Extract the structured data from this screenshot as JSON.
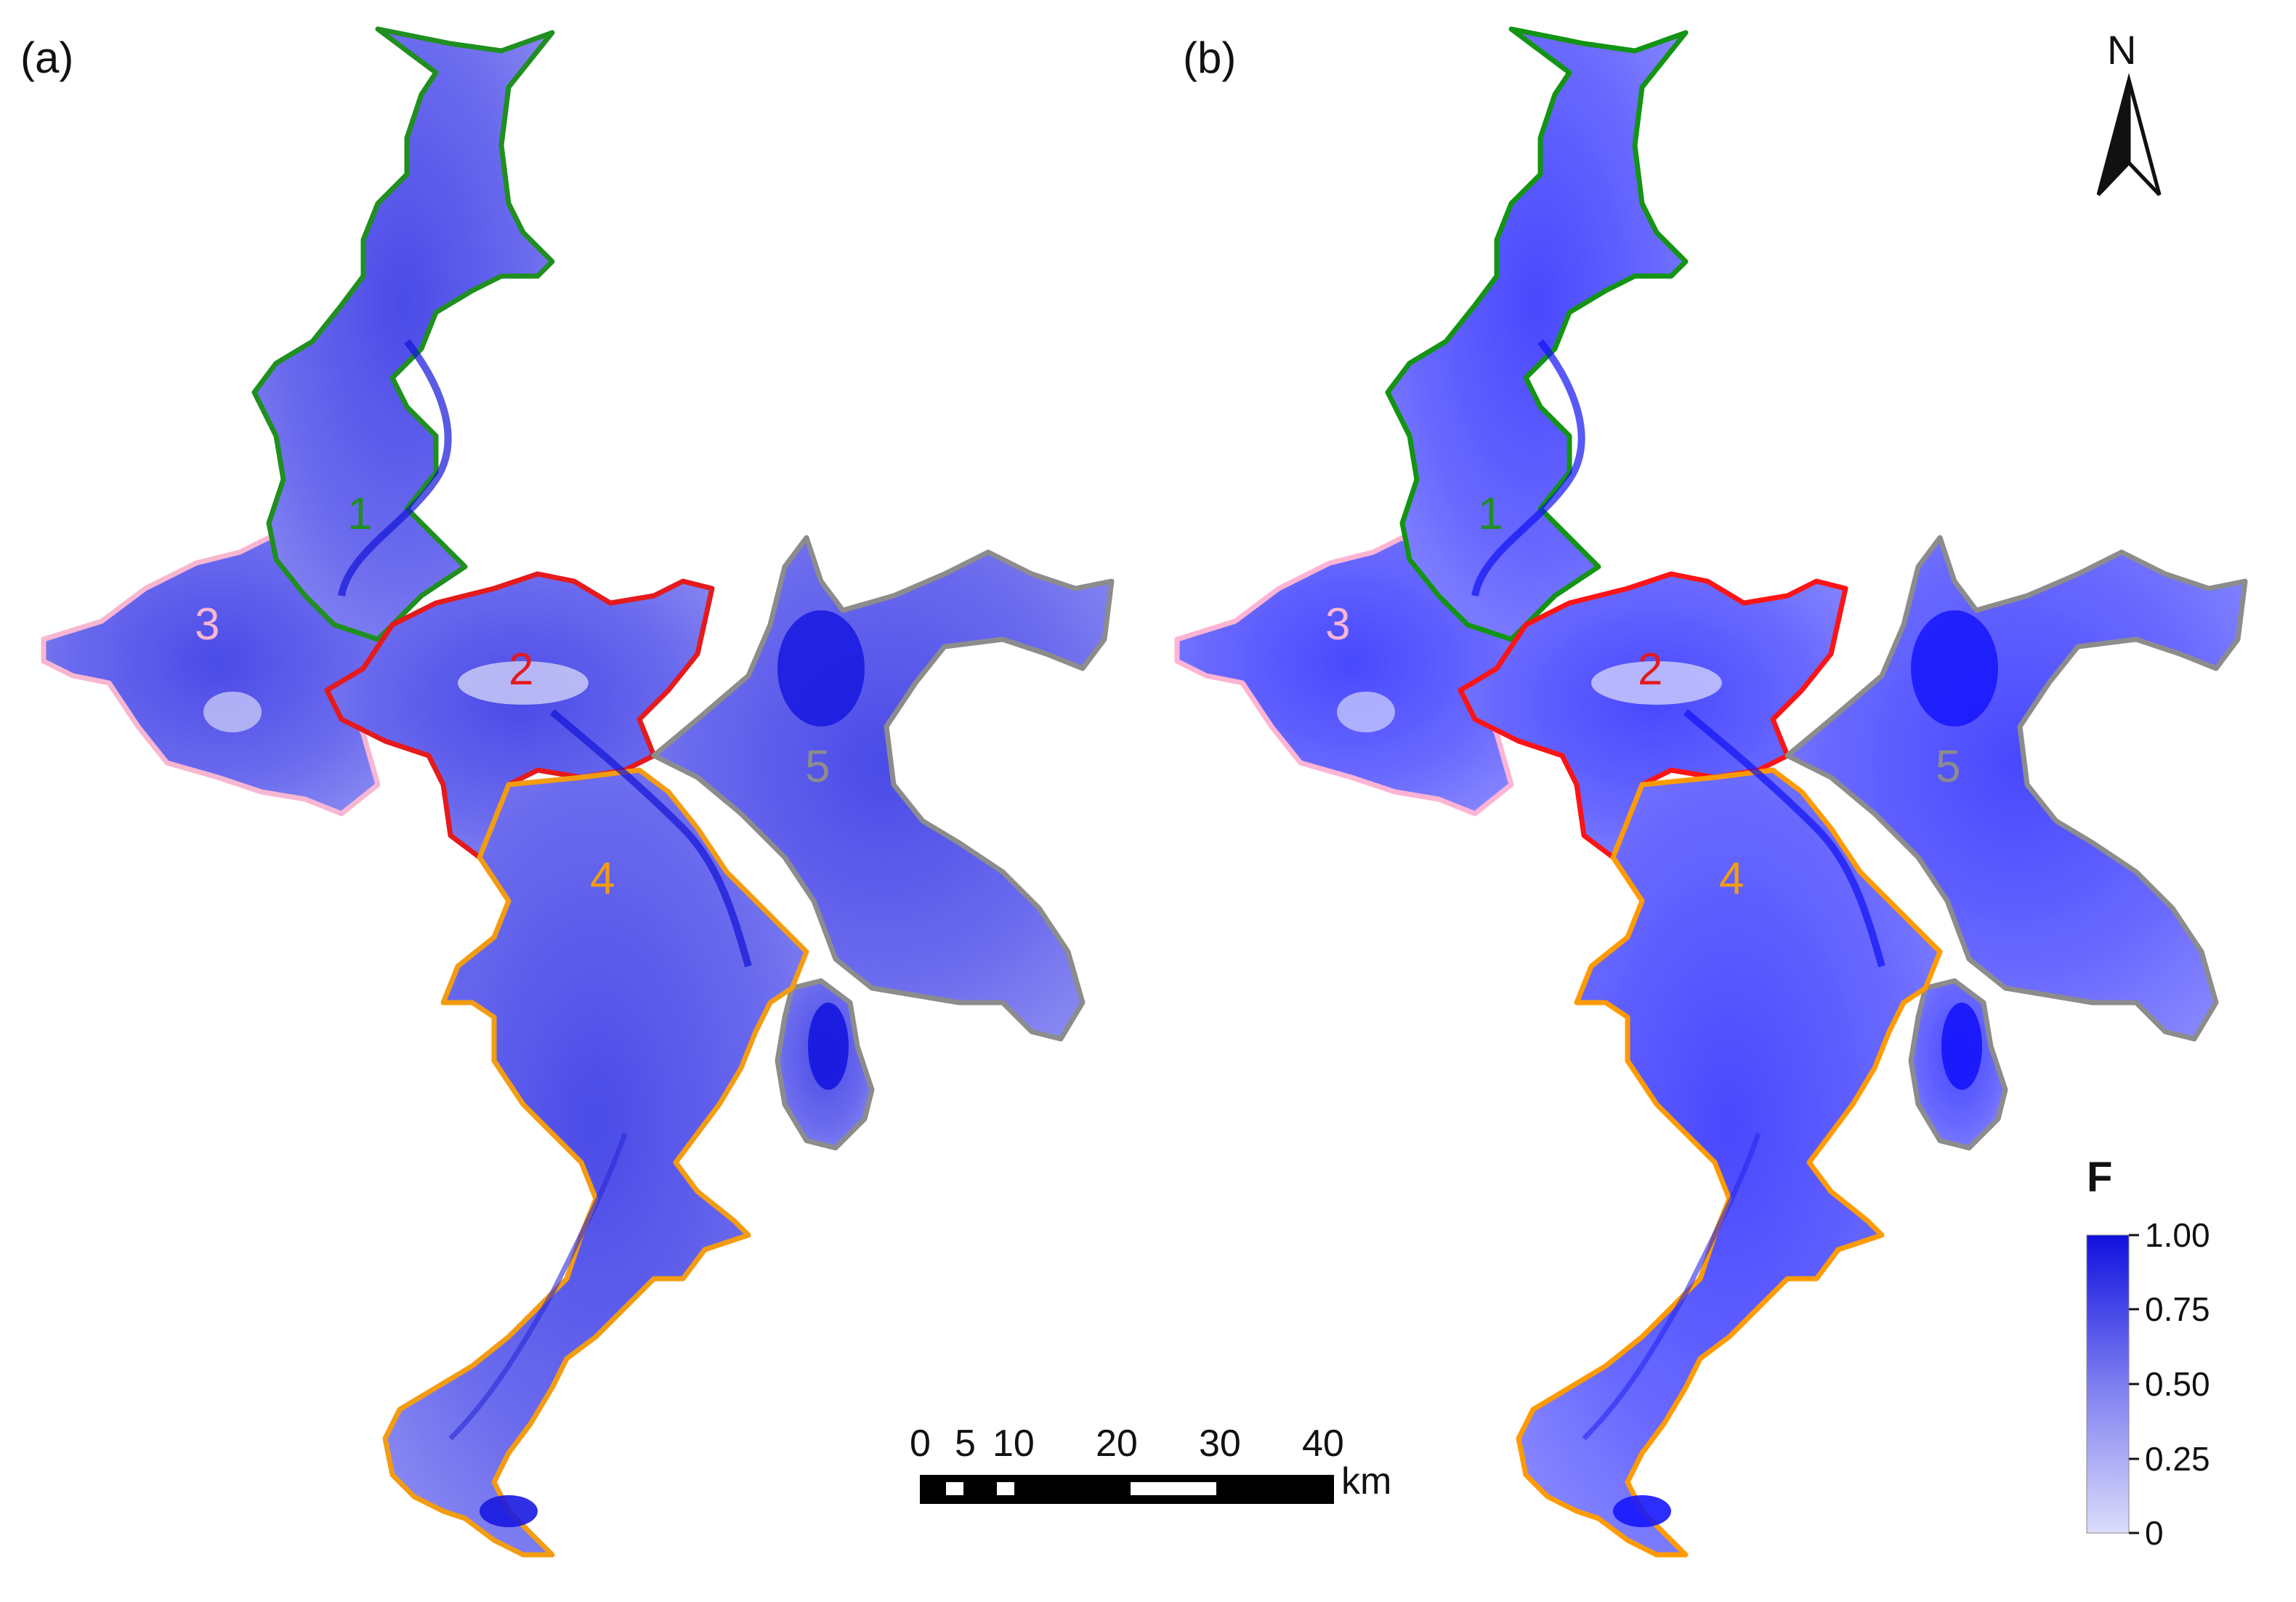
{
  "panels": [
    {
      "label": "(a)"
    },
    {
      "label": "(b)"
    }
  ],
  "zones": [
    {
      "id": "1",
      "color": "#1f8f1f"
    },
    {
      "id": "2",
      "color": "#e41a1c"
    },
    {
      "id": "3",
      "color": "#f7b6d2"
    },
    {
      "id": "4",
      "color": "#f39c12"
    },
    {
      "id": "5",
      "color": "#8c8c8c"
    }
  ],
  "north_arrow": {
    "label": "N"
  },
  "scale_bar": {
    "ticks": [
      "0",
      "5",
      "10",
      "20",
      "30",
      "40"
    ],
    "unit": "km"
  },
  "legend": {
    "title": "F",
    "ticks": [
      "1.00",
      "0.75",
      "0.50",
      "0.25",
      "0"
    ],
    "color_low": "#d9d9fb",
    "color_high": "#1010e0"
  },
  "colors": {
    "water_deep": "#1c1ce0",
    "water_mid": "#5c5cef",
    "water_light": "#a3a3f4"
  }
}
